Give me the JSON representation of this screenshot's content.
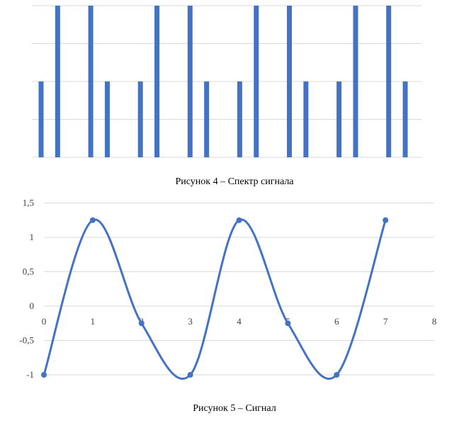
{
  "colors": {
    "series": "#4472C4",
    "grid": "#D9D9D9",
    "text": "#404040"
  },
  "chart_data": [
    {
      "type": "bar",
      "title": "",
      "caption": "Рисунок 4 – Спектр сигнала",
      "x": [
        0,
        0.5,
        1.5,
        2,
        3,
        3.5,
        4.5,
        5,
        6,
        6.5,
        7.5,
        8,
        9,
        9.5,
        10.5,
        11
      ],
      "values": [
        2,
        4,
        4,
        2,
        2,
        4,
        4,
        2,
        2,
        4,
        4,
        2,
        2,
        4,
        4,
        2
      ],
      "ylim": [
        0,
        4
      ],
      "grid": true,
      "axis_labels_visible": false
    },
    {
      "type": "line",
      "title": "",
      "caption": "Рисунок 5 – Сигнал",
      "x": [
        0,
        1,
        2,
        3,
        4,
        5,
        6,
        7
      ],
      "y": [
        -1,
        1.25,
        -0.25,
        -1,
        1.25,
        -0.25,
        -1,
        1.25
      ],
      "xlim": [
        0,
        8
      ],
      "ylim": [
        -1,
        1.5
      ],
      "xticks": [
        "0",
        "1",
        "2",
        "3",
        "4",
        "5",
        "6",
        "7",
        "8"
      ],
      "yticks": [
        "-1",
        "-0,5",
        "0",
        "0,5",
        "1",
        "1,5"
      ],
      "smooth": true,
      "markers": true,
      "grid": true
    }
  ]
}
